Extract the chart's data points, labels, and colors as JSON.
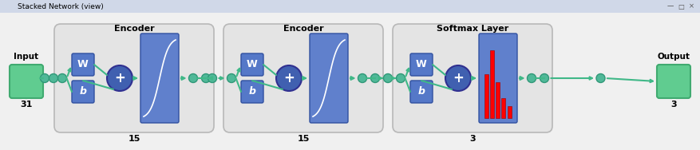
{
  "title": "Stacked Network (view)",
  "encoder1_label": "Encoder",
  "encoder2_label": "Encoder",
  "softmax_label": "Softmax Layer",
  "input_label": "Input",
  "output_label": "Output",
  "n1": "31",
  "n2": "15",
  "n3": "15",
  "n4": "3",
  "n5": "3",
  "bg_color": "#e8e8e8",
  "titlebar_color": "#d0d8e8",
  "group_bg": "#e0e0e0",
  "group_edge": "#b0b0b0",
  "w_box_color": "#5578c8",
  "b_box_color": "#5578c8",
  "act_box_color": "#6080cc",
  "plus_circle_color": "#4060b0",
  "plus_circle_edge": "#303090",
  "input_color": "#60cc90",
  "input_edge": "#40aa70",
  "output_color": "#60cc90",
  "output_edge": "#40aa70",
  "connector_color": "#50b898",
  "connector_edge": "#309878",
  "arrow_color": "#40b888",
  "text_color": "black",
  "white": "#ffffff"
}
